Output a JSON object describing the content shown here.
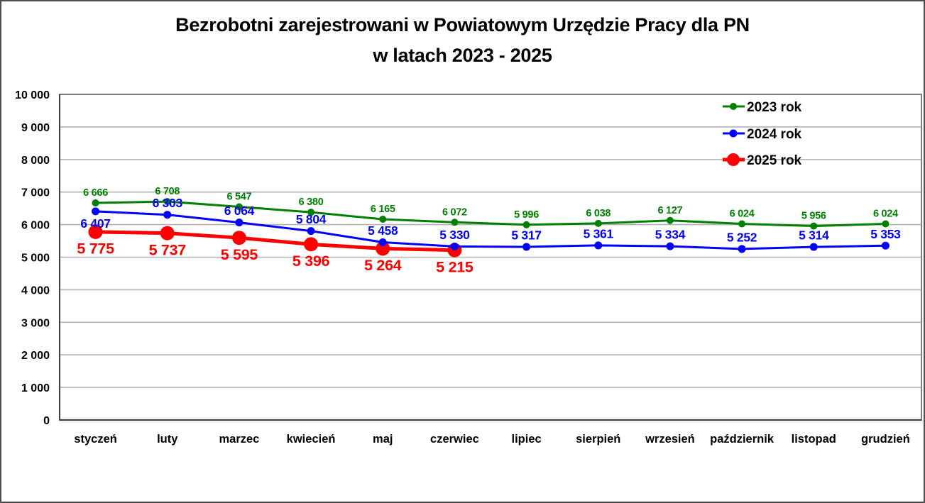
{
  "chart": {
    "title_line1": "Bezrobotni zarejestrowani w Powiatowym Urzędzie Pracy dla PN",
    "title_line2": "w latach 2023 - 2025"
  },
  "chart_data": {
    "type": "line",
    "title": "Bezrobotni zarejestrowani w Powiatowym Urzędzie Pracy dla PN w latach 2023 - 2025",
    "categories": [
      "styczeń",
      "luty",
      "marzec",
      "kwiecień",
      "maj",
      "czerwiec",
      "lipiec",
      "sierpień",
      "wrzesień",
      "październik",
      "listopad",
      "grudzień"
    ],
    "series": [
      {
        "name": "2023 rok",
        "color": "#008000",
        "values": [
          6666,
          6708,
          6547,
          6380,
          6165,
          6072,
          5996,
          6038,
          6127,
          6024,
          5956,
          6024
        ],
        "label_position": "above",
        "label_overrides": {}
      },
      {
        "name": "2024 rok",
        "color": "#0000ff",
        "values": [
          6407,
          6303,
          6064,
          5804,
          5458,
          5330,
          5317,
          5361,
          5334,
          5252,
          5314,
          5353
        ],
        "label_position": "above",
        "label_overrides": {
          "0": "below"
        }
      },
      {
        "name": "2025 rok",
        "color": "#ff0000",
        "values": [
          5775,
          5737,
          5595,
          5396,
          5264,
          5215
        ],
        "label_position": "below",
        "label_overrides": {}
      }
    ],
    "ylim": [
      0,
      10000
    ],
    "ytick_step": 1000,
    "xlabel": "",
    "ylabel": "",
    "grid": "horizontal",
    "legend_position": "top-right",
    "number_format": "space-thousands"
  }
}
